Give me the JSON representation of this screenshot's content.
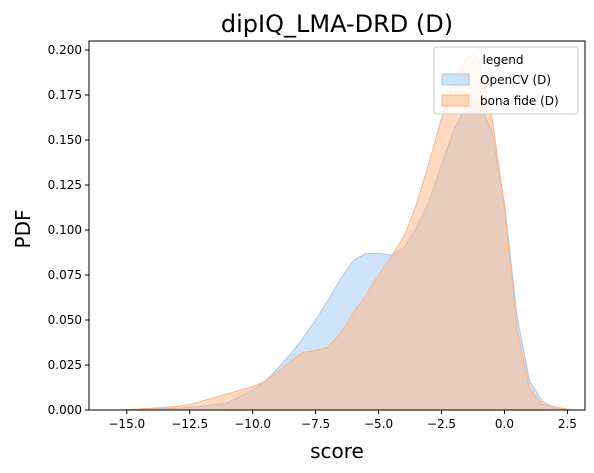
{
  "chart_data": {
    "type": "area",
    "title": "dipIQ_LMA-DRD (D)",
    "xlabel": "score",
    "ylabel": "PDF",
    "xlim": [
      -16.5,
      3.2
    ],
    "ylim": [
      0.0,
      0.205
    ],
    "x_ticks": [
      "−15.0",
      "−12.5",
      "−10.0",
      "−7.5",
      "−5.0",
      "−2.5",
      "0.0",
      "2.5"
    ],
    "x_tick_values": [
      -15.0,
      -12.5,
      -10.0,
      -7.5,
      -5.0,
      -2.5,
      0.0,
      2.5
    ],
    "y_ticks": [
      "0.000",
      "0.025",
      "0.050",
      "0.075",
      "0.100",
      "0.125",
      "0.150",
      "0.175",
      "0.200"
    ],
    "y_tick_values": [
      0.0,
      0.025,
      0.05,
      0.075,
      0.1,
      0.125,
      0.15,
      0.175,
      0.2
    ],
    "grid": false,
    "legend": {
      "title": "legend",
      "placement": "top-right"
    },
    "series": [
      {
        "name": "OpenCV (D)",
        "fill": "#a1c9f4",
        "stroke": "#a1c9f4",
        "x": [
          -15.2,
          -14.0,
          -13.0,
          -12.0,
          -11.0,
          -10.0,
          -9.5,
          -9.0,
          -8.5,
          -8.0,
          -7.5,
          -7.0,
          -6.5,
          -6.0,
          -5.5,
          -5.0,
          -4.5,
          -4.0,
          -3.5,
          -3.0,
          -2.5,
          -2.0,
          -1.5,
          -1.2,
          -1.0,
          -0.5,
          0.0,
          0.5,
          1.0,
          1.5,
          2.0,
          2.7
        ],
        "y": [
          0.0,
          0.0005,
          0.001,
          0.002,
          0.004,
          0.011,
          0.016,
          0.023,
          0.031,
          0.04,
          0.05,
          0.061,
          0.073,
          0.083,
          0.087,
          0.087,
          0.086,
          0.09,
          0.101,
          0.116,
          0.136,
          0.156,
          0.169,
          0.172,
          0.17,
          0.155,
          0.115,
          0.052,
          0.016,
          0.005,
          0.001,
          0.0
        ]
      },
      {
        "name": "bona fide (D)",
        "fill": "#ffb482",
        "stroke": "#ffb482",
        "x": [
          -15.2,
          -14.0,
          -13.0,
          -12.5,
          -12.0,
          -11.5,
          -11.0,
          -10.5,
          -10.0,
          -9.5,
          -9.0,
          -8.5,
          -8.0,
          -7.5,
          -7.0,
          -6.5,
          -6.0,
          -5.5,
          -5.0,
          -4.5,
          -4.0,
          -3.5,
          -3.0,
          -2.5,
          -2.0,
          -1.5,
          -1.2,
          -1.0,
          -0.5,
          0.0,
          0.5,
          1.0,
          1.5,
          2.7
        ],
        "y": [
          0.0,
          0.001,
          0.002,
          0.003,
          0.005,
          0.007,
          0.009,
          0.011,
          0.013,
          0.016,
          0.021,
          0.027,
          0.032,
          0.033,
          0.035,
          0.043,
          0.054,
          0.064,
          0.075,
          0.085,
          0.096,
          0.114,
          0.137,
          0.162,
          0.183,
          0.196,
          0.197,
          0.193,
          0.163,
          0.113,
          0.045,
          0.012,
          0.003,
          0.0
        ]
      }
    ]
  }
}
